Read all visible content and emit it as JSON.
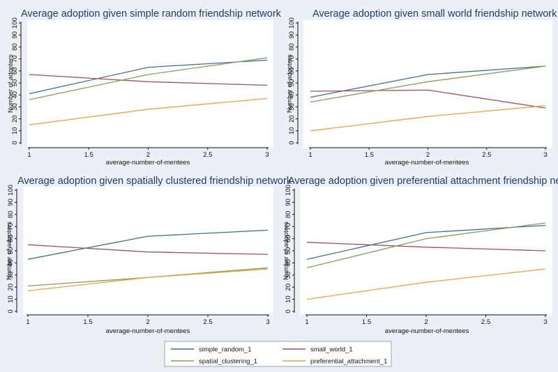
{
  "chart_data": [
    {
      "type": "line",
      "title": "Average adoption given simple random friendship network",
      "xlabel": "average-number-of-mentees",
      "ylabel": "Number of adopters",
      "x": [
        1,
        2,
        3
      ],
      "xticks": [
        "1",
        "1.5",
        "2",
        "2.5",
        "3"
      ],
      "yticks": [
        "0",
        "10",
        "20",
        "30",
        "40",
        "50",
        "60",
        "70",
        "80",
        "90",
        "100"
      ],
      "xlim": [
        1,
        3
      ],
      "ylim": [
        0,
        100
      ],
      "series": [
        {
          "name": "simple_random_1",
          "values": [
            41,
            63,
            69
          ]
        },
        {
          "name": "small_world_1",
          "values": [
            57,
            51,
            48
          ]
        },
        {
          "name": "spatial_clustering_1",
          "values": [
            36,
            57,
            71
          ]
        },
        {
          "name": "preferential_attachment_1",
          "values": [
            15,
            28,
            37
          ]
        }
      ]
    },
    {
      "type": "line",
      "title": "Average adoption given small world friendship network",
      "xlabel": "average-number-of-mentees",
      "ylabel": "Number of adopters",
      "x": [
        1,
        2,
        3
      ],
      "xticks": [
        "1",
        "1.5",
        "2",
        "2.5",
        "3"
      ],
      "yticks": [
        "0",
        "10",
        "20",
        "30",
        "40",
        "50",
        "60",
        "70",
        "80",
        "90",
        "100"
      ],
      "xlim": [
        1,
        3
      ],
      "ylim": [
        0,
        100
      ],
      "series": [
        {
          "name": "simple_random_1",
          "values": [
            38,
            57,
            64
          ]
        },
        {
          "name": "small_world_1",
          "values": [
            43,
            44,
            29
          ]
        },
        {
          "name": "spatial_clustering_1",
          "values": [
            34,
            51,
            64
          ]
        },
        {
          "name": "preferential_attachment_1",
          "values": [
            10,
            22,
            31
          ]
        }
      ]
    },
    {
      "type": "line",
      "title": "Average adoption given spatially clustered friendship network",
      "xlabel": "average-number-of-mentees",
      "ylabel": "Number of adopters",
      "x": [
        1,
        2,
        3
      ],
      "xticks": [
        "1",
        "1.5",
        "2",
        "2.5",
        "3"
      ],
      "yticks": [
        "0",
        "10",
        "20",
        "30",
        "40",
        "50",
        "60",
        "70",
        "80",
        "90",
        "100"
      ],
      "xlim": [
        1,
        3
      ],
      "ylim": [
        0,
        100
      ],
      "series": [
        {
          "name": "simple_random_1",
          "values": [
            43,
            62,
            67
          ]
        },
        {
          "name": "small_world_1",
          "values": [
            55,
            49,
            47
          ]
        },
        {
          "name": "spatial_clustering_1",
          "values": [
            21,
            28,
            36
          ]
        },
        {
          "name": "preferential_attachment_1",
          "values": [
            17,
            28,
            35
          ]
        }
      ]
    },
    {
      "type": "line",
      "title": "Average adoption given preferential attachment friendship network",
      "xlabel": "average-number-of-mentees",
      "ylabel": "Number of adopters",
      "x": [
        1,
        2,
        3
      ],
      "xticks": [
        "1",
        "1.5",
        "2",
        "2.5",
        "3"
      ],
      "yticks": [
        "0",
        "10",
        "20",
        "30",
        "40",
        "50",
        "60",
        "70",
        "80",
        "90",
        "100"
      ],
      "xlim": [
        1,
        3
      ],
      "ylim": [
        0,
        100
      ],
      "series": [
        {
          "name": "simple_random_1",
          "values": [
            43,
            65,
            71
          ]
        },
        {
          "name": "small_world_1",
          "values": [
            57,
            53,
            50
          ]
        },
        {
          "name": "spatial_clustering_1",
          "values": [
            36,
            60,
            73
          ]
        },
        {
          "name": "preferential_attachment_1",
          "values": [
            10,
            24,
            35
          ]
        }
      ]
    }
  ],
  "legend": {
    "entries": [
      {
        "name": "simple_random_1",
        "color": "#3d6e94"
      },
      {
        "name": "small_world_1",
        "color": "#a0535f"
      },
      {
        "name": "spatial_clustering_1",
        "color": "#8a9a5b"
      },
      {
        "name": "preferential_attachment_1",
        "color": "#e8a33d"
      }
    ],
    "placement": "bottom-center"
  },
  "colors": {
    "background": "#eaf0f5",
    "plot_background": "#ffffff",
    "title": "#1f3c5f"
  }
}
